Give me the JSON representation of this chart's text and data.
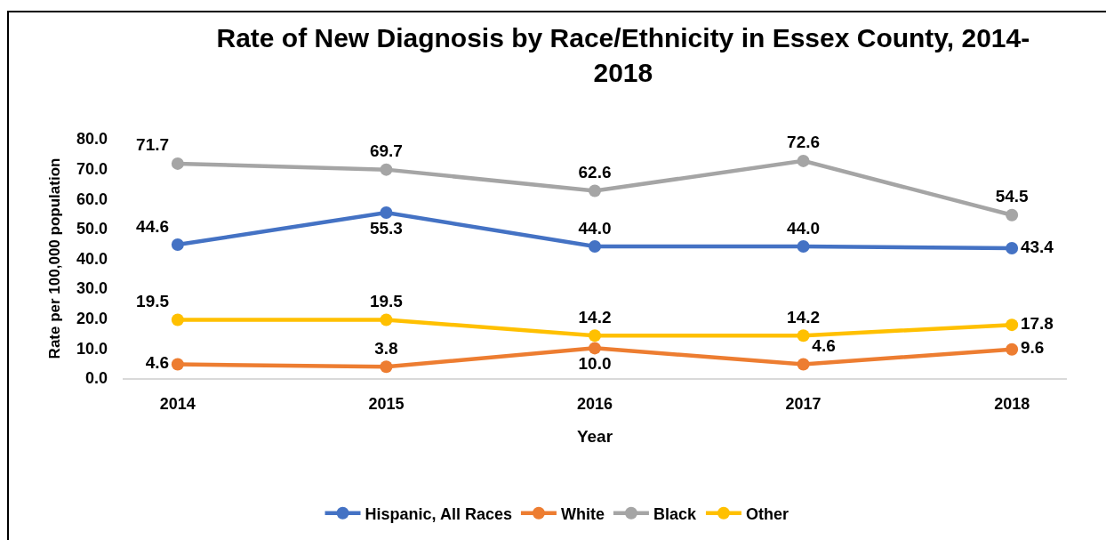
{
  "chart_data": {
    "type": "line",
    "title": "Rate of New Diagnosis by Race/Ethnicity in Essex County, 2014-2018",
    "xlabel": "Year",
    "ylabel": "Rate per 100,000 population",
    "categories": [
      "2014",
      "2015",
      "2016",
      "2017",
      "2018"
    ],
    "series": [
      {
        "name": "Hispanic, All Races",
        "color": "#4472c4",
        "values": [
          44.6,
          55.3,
          44.0,
          44.0,
          43.4
        ],
        "value_labels": [
          "44.6",
          "55.3",
          "44.0",
          "44.0",
          "43.4"
        ]
      },
      {
        "name": "White",
        "color": "#ed7d31",
        "values": [
          4.6,
          3.8,
          10.0,
          4.6,
          9.6
        ],
        "value_labels": [
          "4.6",
          "3.8",
          "10.0",
          "4.6",
          "9.6"
        ]
      },
      {
        "name": "Black",
        "color": "#a5a5a5",
        "values": [
          71.7,
          69.7,
          62.6,
          72.6,
          54.5
        ],
        "value_labels": [
          "71.7",
          "69.7",
          "62.6",
          "72.6",
          "54.5"
        ]
      },
      {
        "name": "Other",
        "color": "#ffc000",
        "values": [
          19.5,
          19.5,
          14.2,
          14.2,
          17.8
        ],
        "value_labels": [
          "19.5",
          "19.5",
          "14.2",
          "14.2",
          "17.8"
        ]
      }
    ],
    "ylim": [
      0,
      80
    ],
    "yticks": [
      {
        "value": 0,
        "label": "0.0"
      },
      {
        "value": 10,
        "label": "10.0"
      },
      {
        "value": 20,
        "label": "20.0"
      },
      {
        "value": 30,
        "label": "30.0"
      },
      {
        "value": 40,
        "label": "40.0"
      },
      {
        "value": 50,
        "label": "50.0"
      },
      {
        "value": 60,
        "label": "60.0"
      },
      {
        "value": 70,
        "label": "70.0"
      },
      {
        "value": 80,
        "label": "80.0"
      }
    ],
    "grid": false,
    "legend": "bottom",
    "marker": "circle",
    "line_style": "solid"
  }
}
